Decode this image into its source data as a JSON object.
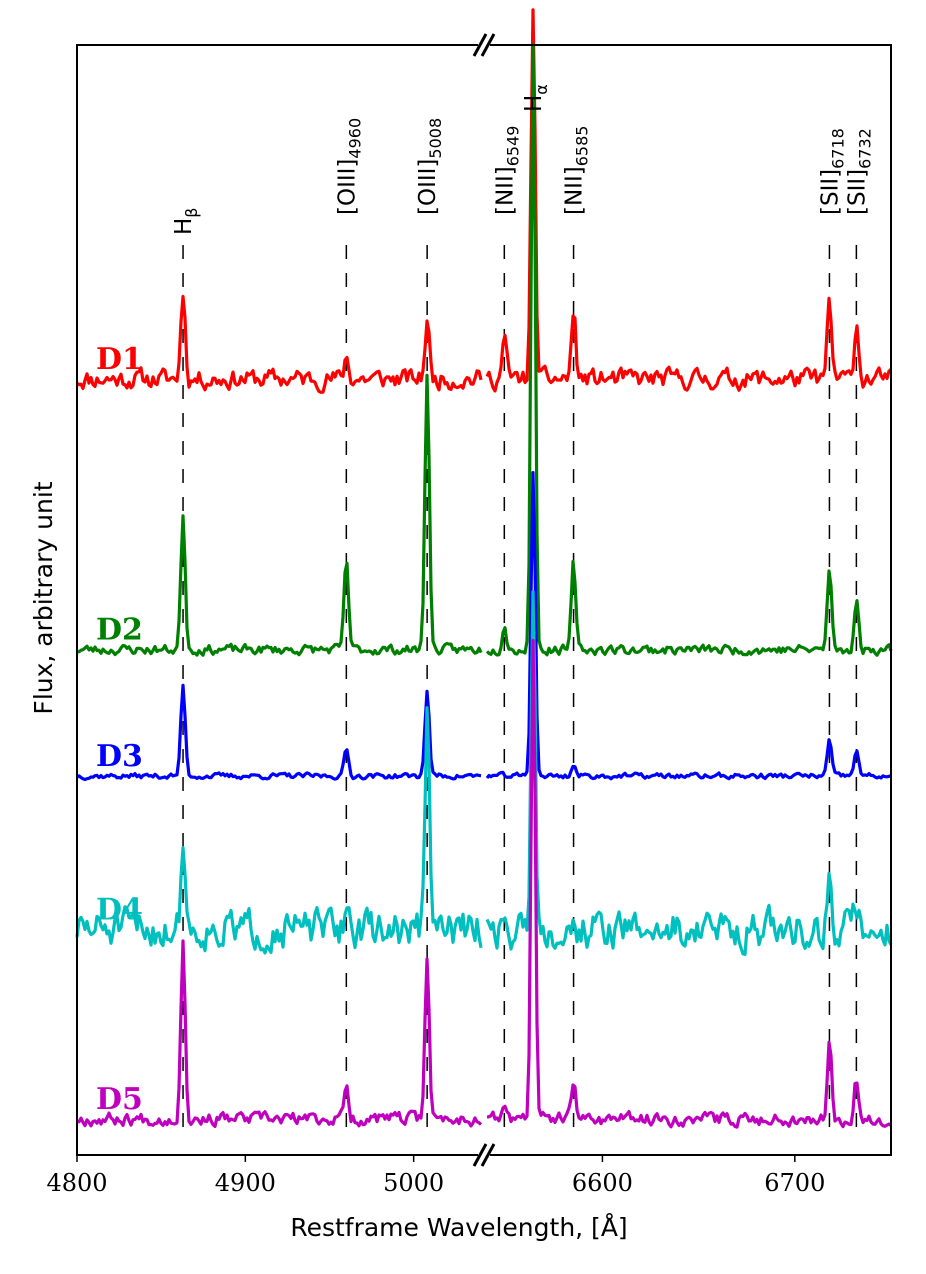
{
  "chart_data": {
    "type": "line",
    "xlabel": "Restframe Wavelength, [Å]",
    "ylabel": "Flux, arbitrary unit",
    "x_segments": [
      {
        "xlim": [
          4800,
          5040
        ],
        "ticks": [
          4800,
          4900,
          5000
        ],
        "tick_labels": [
          "4800",
          "4900",
          "5000"
        ]
      },
      {
        "xlim": [
          6540,
          6750
        ],
        "ticks": [
          6600,
          6700
        ],
        "tick_labels": [
          "6600",
          "6700"
        ]
      }
    ],
    "axis_break": true,
    "emission_lines": [
      {
        "label": "Hβ",
        "base": "H",
        "sub": "β",
        "wavelength": 4863
      },
      {
        "label": "[OIII]4960",
        "base": "[OIII]",
        "sub": "4960",
        "wavelength": 4960
      },
      {
        "label": "[OIII]5008",
        "base": "[OIII]",
        "sub": "5008",
        "wavelength": 5008
      },
      {
        "label": "[NII]6549",
        "base": "[NII]",
        "sub": "6549",
        "wavelength": 6549
      },
      {
        "label": "Hα",
        "base": "H",
        "sub": "α",
        "wavelength": 6564
      },
      {
        "label": "[NII]6585",
        "base": "[NII]",
        "sub": "6585",
        "wavelength": 6585
      },
      {
        "label": "[SII]6718",
        "base": "[SII]",
        "sub": "6718",
        "wavelength": 6718
      },
      {
        "label": "[SII]6732",
        "base": "[SII]",
        "sub": "6732",
        "wavelength": 6732
      }
    ],
    "series": [
      {
        "name": "D1",
        "color": "#ff0000",
        "offset": 8.6,
        "noise": 0.18,
        "seed": 11,
        "peaks": {
          "4863": 1.0,
          "4960": 0.25,
          "5008": 0.65,
          "6549": 0.45,
          "6564": 4.0,
          "6585": 0.75,
          "6718": 0.85,
          "6732": 0.65
        }
      },
      {
        "name": "D2",
        "color": "#008000",
        "offset": 5.6,
        "noise": 0.09,
        "seed": 23,
        "peaks": {
          "4863": 1.5,
          "4960": 1.0,
          "5008": 3.1,
          "6549": 0.3,
          "6564": 6.7,
          "6585": 0.95,
          "6718": 0.9,
          "6732": 0.55
        }
      },
      {
        "name": "D3",
        "color": "#0000ff",
        "offset": 4.2,
        "noise": 0.05,
        "seed": 37,
        "peaks": {
          "4863": 1.0,
          "4960": 0.3,
          "5008": 0.95,
          "6549": 0.0,
          "6564": 3.4,
          "6585": 0.12,
          "6718": 0.4,
          "6732": 0.3
        }
      },
      {
        "name": "D4",
        "color": "#00bfbf",
        "offset": 2.5,
        "noise": 0.35,
        "seed": 51,
        "peaks": {
          "4863": 1.0,
          "4960": 0.3,
          "5008": 2.4,
          "6549": 0.0,
          "6564": 3.9,
          "6585": 0.0,
          "6718": 0.5,
          "6732": 0.3
        }
      },
      {
        "name": "D5",
        "color": "#bf00bf",
        "offset": 0.4,
        "noise": 0.12,
        "seed": 67,
        "peaks": {
          "4863": 1.95,
          "4960": 0.35,
          "5008": 1.8,
          "6549": 0.15,
          "6564": 5.3,
          "6585": 0.4,
          "6718": 0.85,
          "6732": 0.45
        }
      }
    ],
    "ylim": [
      0,
      12.3
    ],
    "grid": false
  }
}
